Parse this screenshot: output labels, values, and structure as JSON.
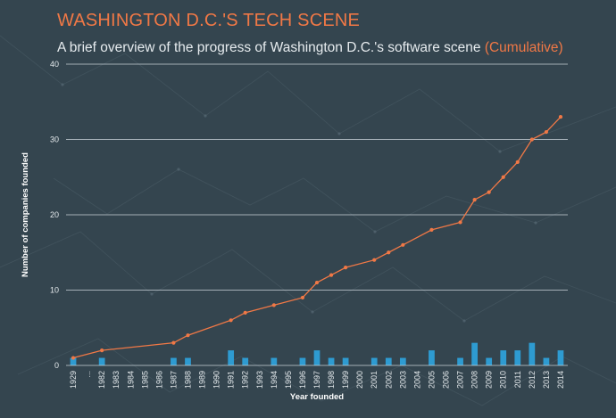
{
  "header": {
    "title": "WASHINGTON D.C.'S TECH SCENE",
    "subtitle": "A brief overview of the progress of Washington D.C.'s software scene",
    "subtitle_highlight": "(Cumulative)"
  },
  "colors": {
    "background": "#34454f",
    "accent": "#f07846",
    "bars": "#2e9bd1",
    "line": "#f07846",
    "grid": "#c9d2d8"
  },
  "chart_data": {
    "type": "bar+line",
    "title": "WASHINGTON D.C.'S TECH SCENE",
    "subtitle": "A brief overview of the progress of Washington D.C.'s software scene (Cumulative)",
    "xlabel": "Year founded",
    "ylabel": "Number of companies founded",
    "ylim": [
      0,
      40
    ],
    "yticks": [
      0,
      10,
      20,
      30,
      40
    ],
    "grid": true,
    "categories": [
      "1929",
      "...",
      "1982",
      "1983",
      "1984",
      "1985",
      "1986",
      "1987",
      "1988",
      "1989",
      "1990",
      "1991",
      "1992",
      "1993",
      "1994",
      "1995",
      "1996",
      "1997",
      "1998",
      "1999",
      "2000",
      "2001",
      "2002",
      "2003",
      "2004",
      "2005",
      "2006",
      "2007",
      "2008",
      "2009",
      "2010",
      "2011",
      "2012",
      "2013",
      "2014"
    ],
    "series": [
      {
        "type": "bar",
        "values": [
          1,
          null,
          1,
          0,
          0,
          0,
          0,
          1,
          1,
          0,
          0,
          2,
          1,
          0,
          1,
          0,
          1,
          2,
          1,
          1,
          0,
          1,
          1,
          1,
          0,
          2,
          0,
          1,
          3,
          1,
          2,
          2,
          3,
          1,
          2
        ]
      },
      {
        "type": "line",
        "values": [
          1,
          null,
          2,
          null,
          null,
          null,
          null,
          3,
          4,
          null,
          null,
          6,
          7,
          null,
          8,
          null,
          9,
          11,
          12,
          13,
          null,
          14,
          15,
          16,
          null,
          18,
          null,
          19,
          22,
          23,
          25,
          27,
          30,
          31,
          33
        ]
      }
    ]
  }
}
